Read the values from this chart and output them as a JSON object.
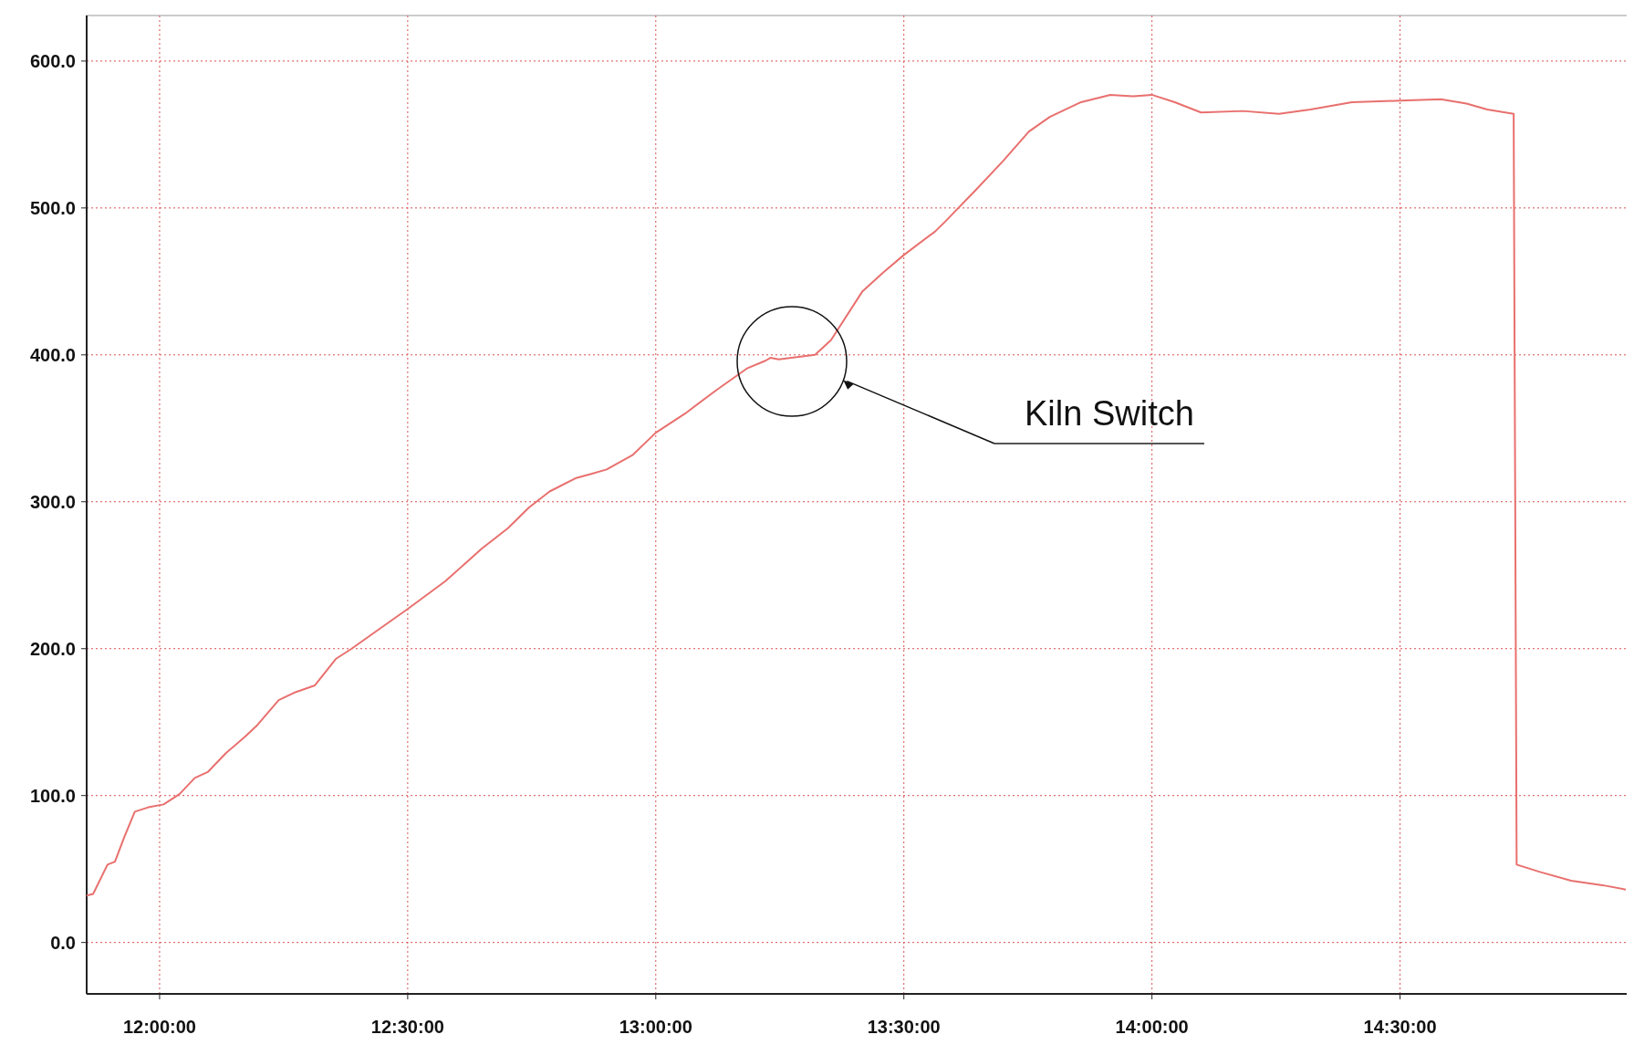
{
  "chart_data": {
    "type": "line",
    "x": [
      11.853,
      11.866,
      11.895,
      11.91,
      11.929,
      11.95,
      11.977,
      12.008,
      12.04,
      12.071,
      12.097,
      12.134,
      12.172,
      12.197,
      12.24,
      12.271,
      12.313,
      12.355,
      12.387,
      12.433,
      12.5,
      12.576,
      12.649,
      12.702,
      12.744,
      12.786,
      12.838,
      12.87,
      12.901,
      12.954,
      13.0,
      13.059,
      13.122,
      13.185,
      13.221,
      13.231,
      13.248,
      13.321,
      13.353,
      13.416,
      13.458,
      13.5,
      13.563,
      13.584,
      13.647,
      13.7,
      13.752,
      13.794,
      13.857,
      13.916,
      13.962,
      14.0,
      14.046,
      14.099,
      14.183,
      14.256,
      14.319,
      14.403,
      14.5,
      14.582,
      14.634,
      14.676,
      14.729,
      14.735,
      14.782,
      14.845,
      14.908,
      14.955
    ],
    "series": [
      {
        "color": "#e8706e",
        "values": [
          32,
          33,
          53,
          55,
          72,
          89,
          92,
          94,
          101,
          112,
          116,
          129,
          140,
          148,
          165,
          170,
          175,
          193,
          200,
          211,
          227,
          246,
          268,
          282,
          296,
          307,
          316,
          319,
          322,
          332,
          347,
          360,
          376,
          391,
          396,
          398,
          397,
          400,
          410,
          443,
          456,
          468,
          484,
          491,
          513,
          532,
          552,
          562,
          572,
          577,
          576,
          577,
          572,
          565,
          566,
          564,
          567,
          572,
          573,
          574,
          571,
          567,
          564,
          53,
          48,
          42,
          39,
          36
        ]
      }
    ],
    "xlim": [
      11.853,
      14.966
    ],
    "xticks": [
      {
        "value": 12,
        "label": "12:00:00"
      },
      {
        "value": 12.5,
        "label": "12:30:00"
      },
      {
        "value": 13,
        "label": "13:00:00"
      },
      {
        "value": 13.5,
        "label": "13:30:00"
      },
      {
        "value": 14,
        "label": "14:00:00"
      },
      {
        "value": 14.5,
        "label": "14:30:00"
      }
    ],
    "ylim": [
      -35,
      631
    ],
    "yticks": [
      {
        "value": 0,
        "label": "0.0"
      },
      {
        "value": 100,
        "label": "100.0"
      },
      {
        "value": 200,
        "label": "200.0"
      },
      {
        "value": 300,
        "label": "300.0"
      },
      {
        "value": 400,
        "label": "400.0"
      },
      {
        "value": 500,
        "label": "500.0"
      },
      {
        "value": 600,
        "label": "600.0"
      }
    ],
    "grid": true,
    "line_style": "solid",
    "marker": "none",
    "annotations": [
      "Kiln Switch"
    ]
  }
}
